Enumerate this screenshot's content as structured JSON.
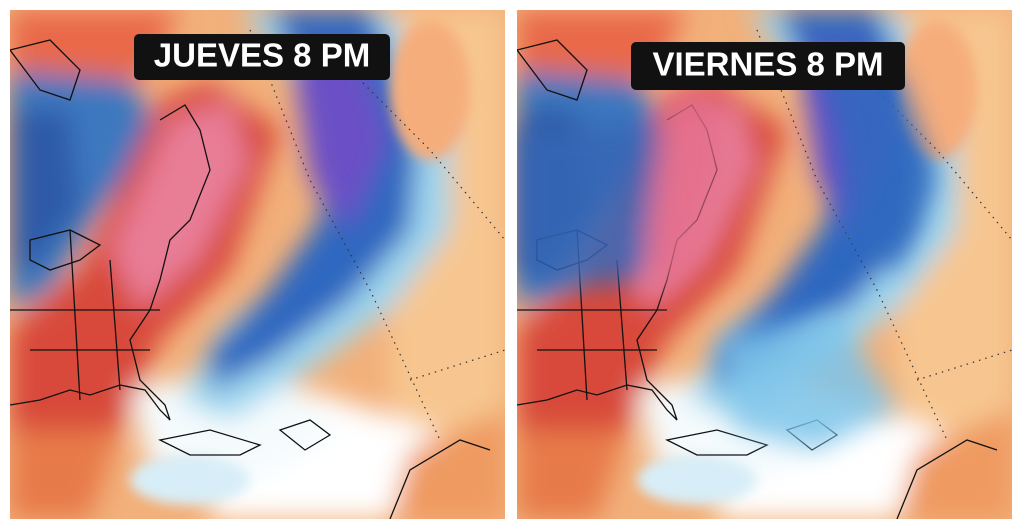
{
  "panels": [
    {
      "label": "JUEVES 8 PM"
    },
    {
      "label": "VIERNES 8 PM"
    }
  ]
}
